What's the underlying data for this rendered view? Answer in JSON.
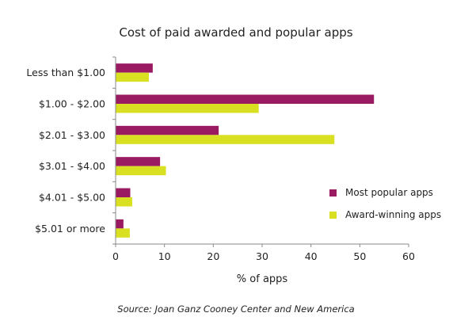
{
  "chart_data": {
    "type": "bar",
    "orientation": "horizontal",
    "title": "Cost of paid awarded and popular apps",
    "xlabel": "% of apps",
    "ylabel": "",
    "categories": [
      "Less than $1.00",
      "$1.00 - $2.00",
      "$2.01 - $3.00",
      "$3.01 - $4.00",
      "$4.01 - $5.00",
      "$5.01 or more"
    ],
    "xlim": [
      0,
      60
    ],
    "xticks": [
      0,
      10,
      20,
      30,
      40,
      50,
      60
    ],
    "series": [
      {
        "name": "Most popular apps",
        "color": "#9b1b63",
        "values": [
          7.6,
          52.9,
          21.1,
          9.1,
          3.0,
          1.6
        ]
      },
      {
        "name": "Award-winning apps",
        "color": "#d8e021",
        "values": [
          6.8,
          29.3,
          44.8,
          10.3,
          3.4,
          2.9
        ]
      }
    ],
    "grid": false,
    "legend_position": "right"
  },
  "source": "Source: Joan Ganz Cooney Center and New America"
}
